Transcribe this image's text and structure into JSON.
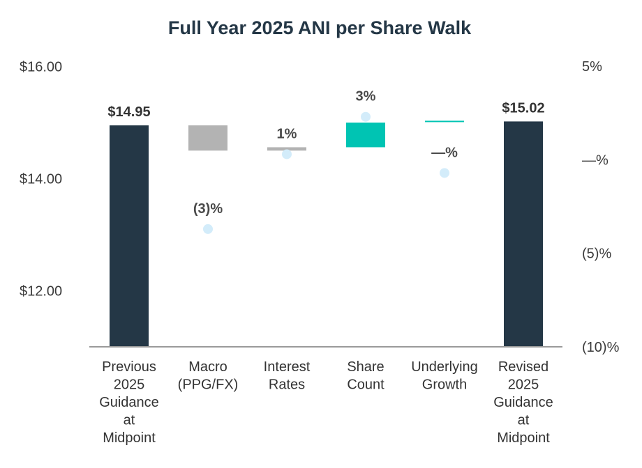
{
  "chart_data": {
    "type": "waterfall",
    "title": "Full Year 2025 ANI per Share Walk",
    "left_axis": {
      "ylim": [
        11.0,
        16.0
      ],
      "ticks": [
        16.0,
        14.0,
        12.0
      ],
      "tick_labels": [
        "$16.00",
        "$14.00",
        "$12.00"
      ]
    },
    "right_axis": {
      "ylim": [
        -10,
        5
      ],
      "ticks": [
        5,
        0,
        -5,
        -10
      ],
      "tick_labels": [
        "5%",
        "—%",
        "(5)%",
        "(10)%"
      ]
    },
    "categories": [
      {
        "label_lines": [
          "Previous",
          "2025",
          "Guidance",
          "at",
          "Midpoint"
        ],
        "kind": "total",
        "start": 11.0,
        "end": 14.95,
        "color": "#243746",
        "value_label": "$14.95"
      },
      {
        "label_lines": [
          "Macro",
          "(PPG/FX)"
        ],
        "kind": "delta",
        "start": 14.95,
        "end": 14.5,
        "color": "#b3b3b3",
        "pct": -3,
        "pct_label": "(3)%"
      },
      {
        "label_lines": [
          "Interest",
          "Rates"
        ],
        "kind": "delta",
        "start": 14.5,
        "end": 14.56,
        "color": "#b3b3b3",
        "pct": 1,
        "pct_label": "1%"
      },
      {
        "label_lines": [
          "Share",
          "Count"
        ],
        "kind": "delta",
        "start": 14.56,
        "end": 15.0,
        "color": "#00c4b3",
        "pct": 3,
        "pct_label": "3%"
      },
      {
        "label_lines": [
          "Underlying",
          "Growth"
        ],
        "kind": "delta",
        "start": 15.0,
        "end": 15.02,
        "color": "#00c4b3",
        "pct": 0,
        "pct_label": "—%"
      },
      {
        "label_lines": [
          "Revised",
          "2025",
          "Guidance",
          "at",
          "Midpoint"
        ],
        "kind": "total",
        "start": 11.0,
        "end": 15.02,
        "color": "#243746",
        "value_label": "$15.02"
      }
    ],
    "dot_color": "#d3ecfa",
    "axis_line_color": "#9a9a9a"
  }
}
